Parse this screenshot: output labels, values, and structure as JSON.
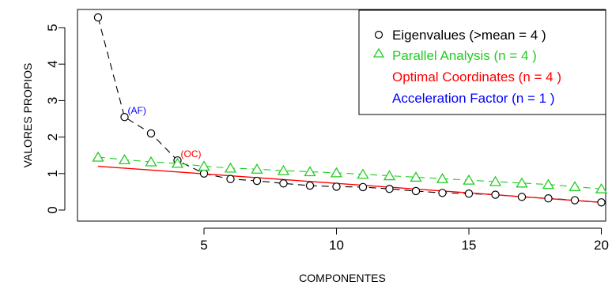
{
  "chart_data": {
    "type": "scatter",
    "title": "",
    "xlabel": "COMPONENTES",
    "ylabel": "VALORES PROPIOS",
    "xlim": [
      0,
      20
    ],
    "ylim": [
      0,
      5.3
    ],
    "x_ticks": [
      "5",
      "10",
      "15",
      "20"
    ],
    "y_ticks": [
      "0",
      "1",
      "2",
      "3",
      "4",
      "5"
    ],
    "legend_position": "top-right",
    "series": [
      {
        "name": "Eigenvalues (>mean  =  4 )",
        "marker": "circle",
        "color": "#000000",
        "line": "dashed",
        "x": [
          1,
          2,
          3,
          4,
          5,
          6,
          7,
          8,
          9,
          10,
          11,
          12,
          13,
          14,
          15,
          16,
          17,
          18,
          19,
          20
        ],
        "values": [
          5.28,
          2.55,
          2.1,
          1.36,
          1.0,
          0.85,
          0.8,
          0.73,
          0.67,
          0.64,
          0.63,
          0.58,
          0.52,
          0.47,
          0.45,
          0.42,
          0.36,
          0.32,
          0.27,
          0.21
        ]
      },
      {
        "name": "Parallel Analysis (n =  4 )",
        "marker": "triangle",
        "color": "#22cc22",
        "line": "dashed",
        "x": [
          1,
          2,
          3,
          4,
          5,
          6,
          7,
          8,
          9,
          10,
          11,
          12,
          13,
          14,
          15,
          16,
          17,
          18,
          19,
          20
        ],
        "values": [
          1.45,
          1.38,
          1.32,
          1.28,
          1.2,
          1.15,
          1.12,
          1.08,
          1.05,
          1.02,
          0.98,
          0.94,
          0.9,
          0.86,
          0.82,
          0.78,
          0.74,
          0.7,
          0.64,
          0.58
        ]
      },
      {
        "name": "Optimal Coordinates (n =  4 )",
        "color": "#ff0000",
        "line": "solid",
        "x": [
          1,
          20
        ],
        "values": [
          1.2,
          0.21
        ]
      },
      {
        "name": "Acceleration Factor (n =  1 )",
        "color": "#0000ff"
      }
    ],
    "annotations": [
      {
        "text": "(AF)",
        "x": 2,
        "y": 2.55,
        "color": "#0000ff"
      },
      {
        "text": "(OC)",
        "x": 4,
        "y": 1.36,
        "color": "#ff0000"
      }
    ]
  }
}
